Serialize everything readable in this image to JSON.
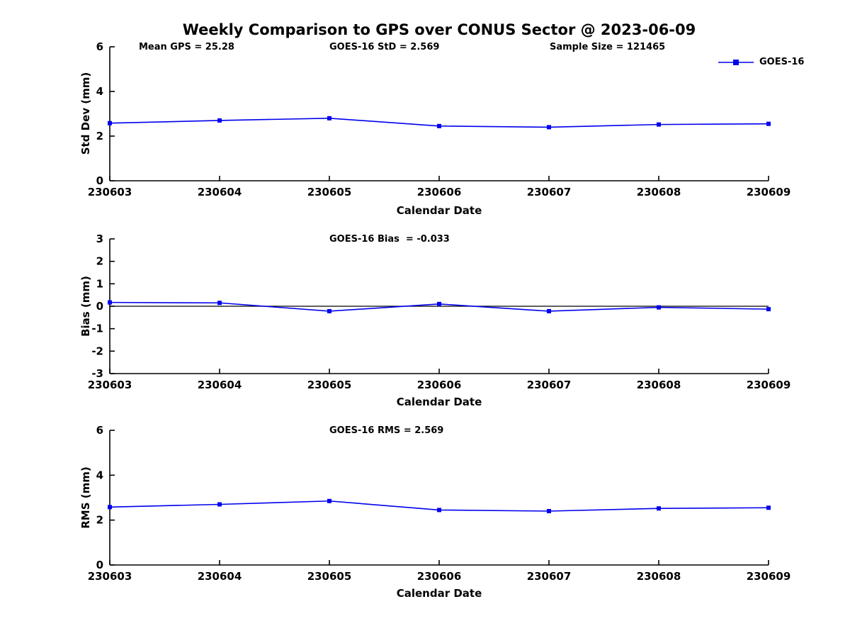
{
  "title": "Weekly Comparison to GPS over CONUS Sector @ 2023-06-09",
  "legend": {
    "label": "GOES-16",
    "color": "#0000ee"
  },
  "chart_data": [
    {
      "type": "line",
      "annotations": {
        "left": "Mean GPS = 25.28",
        "center": "GOES-16 StD = 2.569",
        "right": "Sample Size = 121465"
      },
      "x": [
        "230603",
        "230604",
        "230605",
        "230606",
        "230607",
        "230608",
        "230609"
      ],
      "series": [
        {
          "name": "GOES-16",
          "values": [
            2.58,
            2.7,
            2.8,
            2.45,
            2.4,
            2.52,
            2.55
          ]
        }
      ],
      "xlabel": "Calendar Date",
      "ylabel": "Std Dev (mm)",
      "ylim": [
        0,
        6
      ],
      "yticks": [
        0,
        2,
        4,
        6
      ],
      "grid": false,
      "zero_line": false,
      "legend_position": "top-right-outside"
    },
    {
      "type": "line",
      "annotations": {
        "center": "GOES-16 Bias  = -0.033"
      },
      "x": [
        "230603",
        "230604",
        "230605",
        "230606",
        "230607",
        "230608",
        "230609"
      ],
      "series": [
        {
          "name": "GOES-16",
          "values": [
            0.17,
            0.15,
            -0.22,
            0.1,
            -0.22,
            -0.05,
            -0.13
          ]
        }
      ],
      "xlabel": "Calendar Date",
      "ylabel": "Bias (mm)",
      "ylim": [
        -3,
        3
      ],
      "yticks": [
        -3,
        -2,
        -1,
        0,
        1,
        2,
        3
      ],
      "grid": false,
      "zero_line": true
    },
    {
      "type": "line",
      "annotations": {
        "center": "GOES-16 RMS = 2.569"
      },
      "x": [
        "230603",
        "230604",
        "230605",
        "230606",
        "230607",
        "230608",
        "230609"
      ],
      "series": [
        {
          "name": "GOES-16",
          "values": [
            2.58,
            2.7,
            2.85,
            2.45,
            2.4,
            2.52,
            2.55
          ]
        }
      ],
      "xlabel": "Calendar Date",
      "ylabel": "RMS (mm)",
      "ylim": [
        0,
        6
      ],
      "yticks": [
        0,
        2,
        4,
        6
      ],
      "grid": false,
      "zero_line": false
    }
  ]
}
